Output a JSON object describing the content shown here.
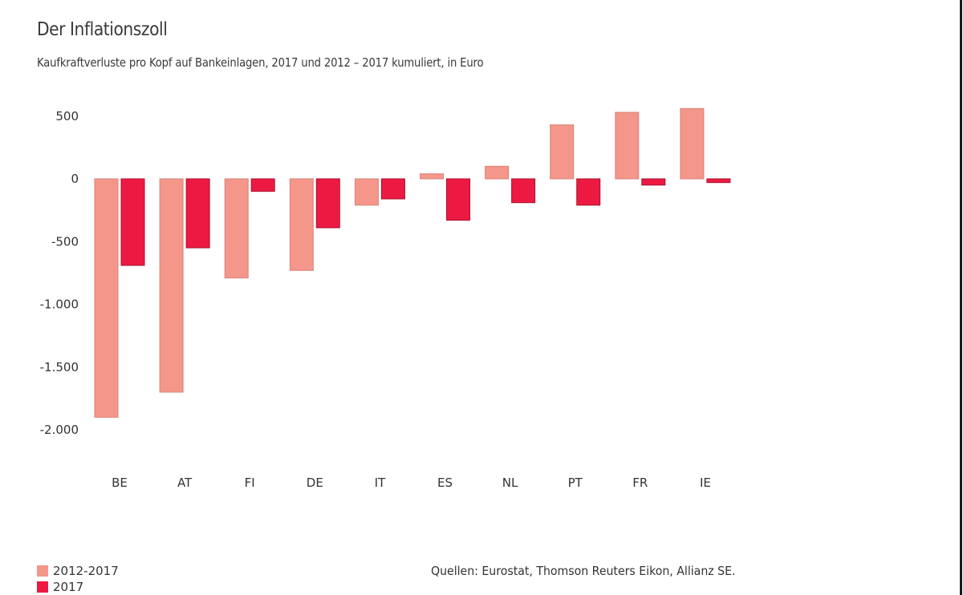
{
  "chart_data": {
    "type": "bar",
    "title": "Der Inflationszoll",
    "subtitle": "Kaufkraftverluste pro Kopf auf Bankeinlagen, 2017 und 2012 – 2017 kumuliert, in Euro",
    "xlabel": "",
    "ylabel": "",
    "categories": [
      "BE",
      "AT",
      "FI",
      "DE",
      "IT",
      "ES",
      "NL",
      "PT",
      "FR",
      "IE"
    ],
    "series": [
      {
        "name": "2012-2017",
        "color": "#F4968A",
        "values": [
          -1900,
          -1700,
          -790,
          -730,
          -210,
          40,
          100,
          430,
          530,
          560
        ]
      },
      {
        "name": "2017",
        "color": "#EC1A43",
        "values": [
          -690,
          -550,
          -100,
          -390,
          -160,
          -330,
          -190,
          -210,
          -50,
          -30
        ]
      }
    ],
    "ylim": [
      -2000,
      500
    ],
    "yticks": [
      500,
      0,
      -500,
      -1000,
      -1500,
      -2000
    ],
    "ytick_labels": [
      "500",
      "0",
      "-500",
      "-1.000",
      "-1.500",
      "-2.000"
    ],
    "grid": false,
    "legend_position": "bottom-left",
    "source": "Quellen: Eurostat, Thomson Reuters Eikon, Allianz SE."
  }
}
